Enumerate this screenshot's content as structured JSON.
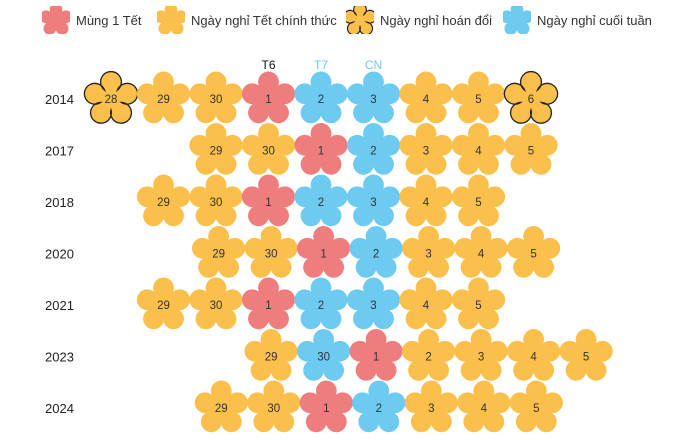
{
  "legend": [
    {
      "label": "Mùng 1 Tết",
      "type": "tet"
    },
    {
      "label": "Ngày nghỉ Tết chính thức",
      "type": "official"
    },
    {
      "label": "Ngày nghỉ hoán đổi",
      "type": "swap"
    },
    {
      "label": "Ngày nghỉ cuối tuần",
      "type": "weekend"
    }
  ],
  "colors": {
    "tet": "#ef7d7d",
    "official": "#fbbf4b",
    "swap": "#fbbf4b",
    "weekend": "#6dcaf0",
    "swap_outline": "#222222",
    "text": "#333333",
    "dow_black": "#111111",
    "dow_blue": "#6dcaf0"
  },
  "icons": {
    "flower": "five-petal-flower-icon"
  },
  "chart_data": {
    "type": "table",
    "weekday_headers": [
      {
        "label": "T6",
        "anchor_year": "2014",
        "anchor_day": "1",
        "color": "#111111"
      },
      {
        "label": "T7",
        "anchor_year": "2014",
        "anchor_day": "2",
        "color": "#6dcaf0"
      },
      {
        "label": "CN",
        "anchor_year": "2014",
        "anchor_day": "3",
        "color": "#6dcaf0"
      }
    ],
    "rows": [
      {
        "year": "2014",
        "days": [
          {
            "day": "28",
            "type": "swap",
            "col": 0
          },
          {
            "day": "29",
            "type": "official",
            "col": 1
          },
          {
            "day": "30",
            "type": "official",
            "col": 2
          },
          {
            "day": "1",
            "type": "tet",
            "col": 3
          },
          {
            "day": "2",
            "type": "weekend",
            "col": 4
          },
          {
            "day": "3",
            "type": "weekend",
            "col": 5
          },
          {
            "day": "4",
            "type": "official",
            "col": 6
          },
          {
            "day": "5",
            "type": "official",
            "col": 7
          },
          {
            "day": "6",
            "type": "swap",
            "col": 8
          }
        ]
      },
      {
        "year": "2017",
        "days": [
          {
            "day": "29",
            "type": "official",
            "col": 2
          },
          {
            "day": "30",
            "type": "official",
            "col": 3
          },
          {
            "day": "1",
            "type": "tet",
            "col": 4
          },
          {
            "day": "2",
            "type": "weekend",
            "col": 5
          },
          {
            "day": "3",
            "type": "official",
            "col": 6
          },
          {
            "day": "4",
            "type": "official",
            "col": 7
          },
          {
            "day": "5",
            "type": "official",
            "col": 8
          }
        ]
      },
      {
        "year": "2018",
        "days": [
          {
            "day": "29",
            "type": "official",
            "col": 1
          },
          {
            "day": "30",
            "type": "official",
            "col": 2
          },
          {
            "day": "1",
            "type": "tet",
            "col": 3
          },
          {
            "day": "2",
            "type": "weekend",
            "col": 4
          },
          {
            "day": "3",
            "type": "weekend",
            "col": 5
          },
          {
            "day": "4",
            "type": "official",
            "col": 6
          },
          {
            "day": "5",
            "type": "official",
            "col": 7
          }
        ]
      },
      {
        "year": "2020",
        "days": [
          {
            "day": "29",
            "type": "official",
            "col": 2.05
          },
          {
            "day": "30",
            "type": "official",
            "col": 3.05
          },
          {
            "day": "1",
            "type": "tet",
            "col": 4.05
          },
          {
            "day": "2",
            "type": "weekend",
            "col": 5.05
          },
          {
            "day": "3",
            "type": "official",
            "col": 6.05
          },
          {
            "day": "4",
            "type": "official",
            "col": 7.05
          },
          {
            "day": "5",
            "type": "official",
            "col": 8.05
          }
        ]
      },
      {
        "year": "2021",
        "days": [
          {
            "day": "29",
            "type": "official",
            "col": 1
          },
          {
            "day": "30",
            "type": "official",
            "col": 2
          },
          {
            "day": "1",
            "type": "tet",
            "col": 3
          },
          {
            "day": "2",
            "type": "weekend",
            "col": 4
          },
          {
            "day": "3",
            "type": "weekend",
            "col": 5
          },
          {
            "day": "4",
            "type": "official",
            "col": 6
          },
          {
            "day": "5",
            "type": "official",
            "col": 7
          }
        ]
      },
      {
        "year": "2023",
        "days": [
          {
            "day": "29",
            "type": "official",
            "col": 3.05
          },
          {
            "day": "30",
            "type": "weekend",
            "col": 4.05
          },
          {
            "day": "1",
            "type": "tet",
            "col": 5.05
          },
          {
            "day": "2",
            "type": "official",
            "col": 6.05
          },
          {
            "day": "3",
            "type": "official",
            "col": 7.05
          },
          {
            "day": "4",
            "type": "official",
            "col": 8.05
          },
          {
            "day": "5",
            "type": "official",
            "col": 9.05
          }
        ]
      },
      {
        "year": "2024",
        "days": [
          {
            "day": "29",
            "type": "official",
            "col": 2.1
          },
          {
            "day": "30",
            "type": "official",
            "col": 3.1
          },
          {
            "day": "1",
            "type": "tet",
            "col": 4.1
          },
          {
            "day": "2",
            "type": "weekend",
            "col": 5.1
          },
          {
            "day": "3",
            "type": "official",
            "col": 6.1
          },
          {
            "day": "4",
            "type": "official",
            "col": 7.1
          },
          {
            "day": "5",
            "type": "official",
            "col": 8.1
          }
        ]
      }
    ]
  }
}
